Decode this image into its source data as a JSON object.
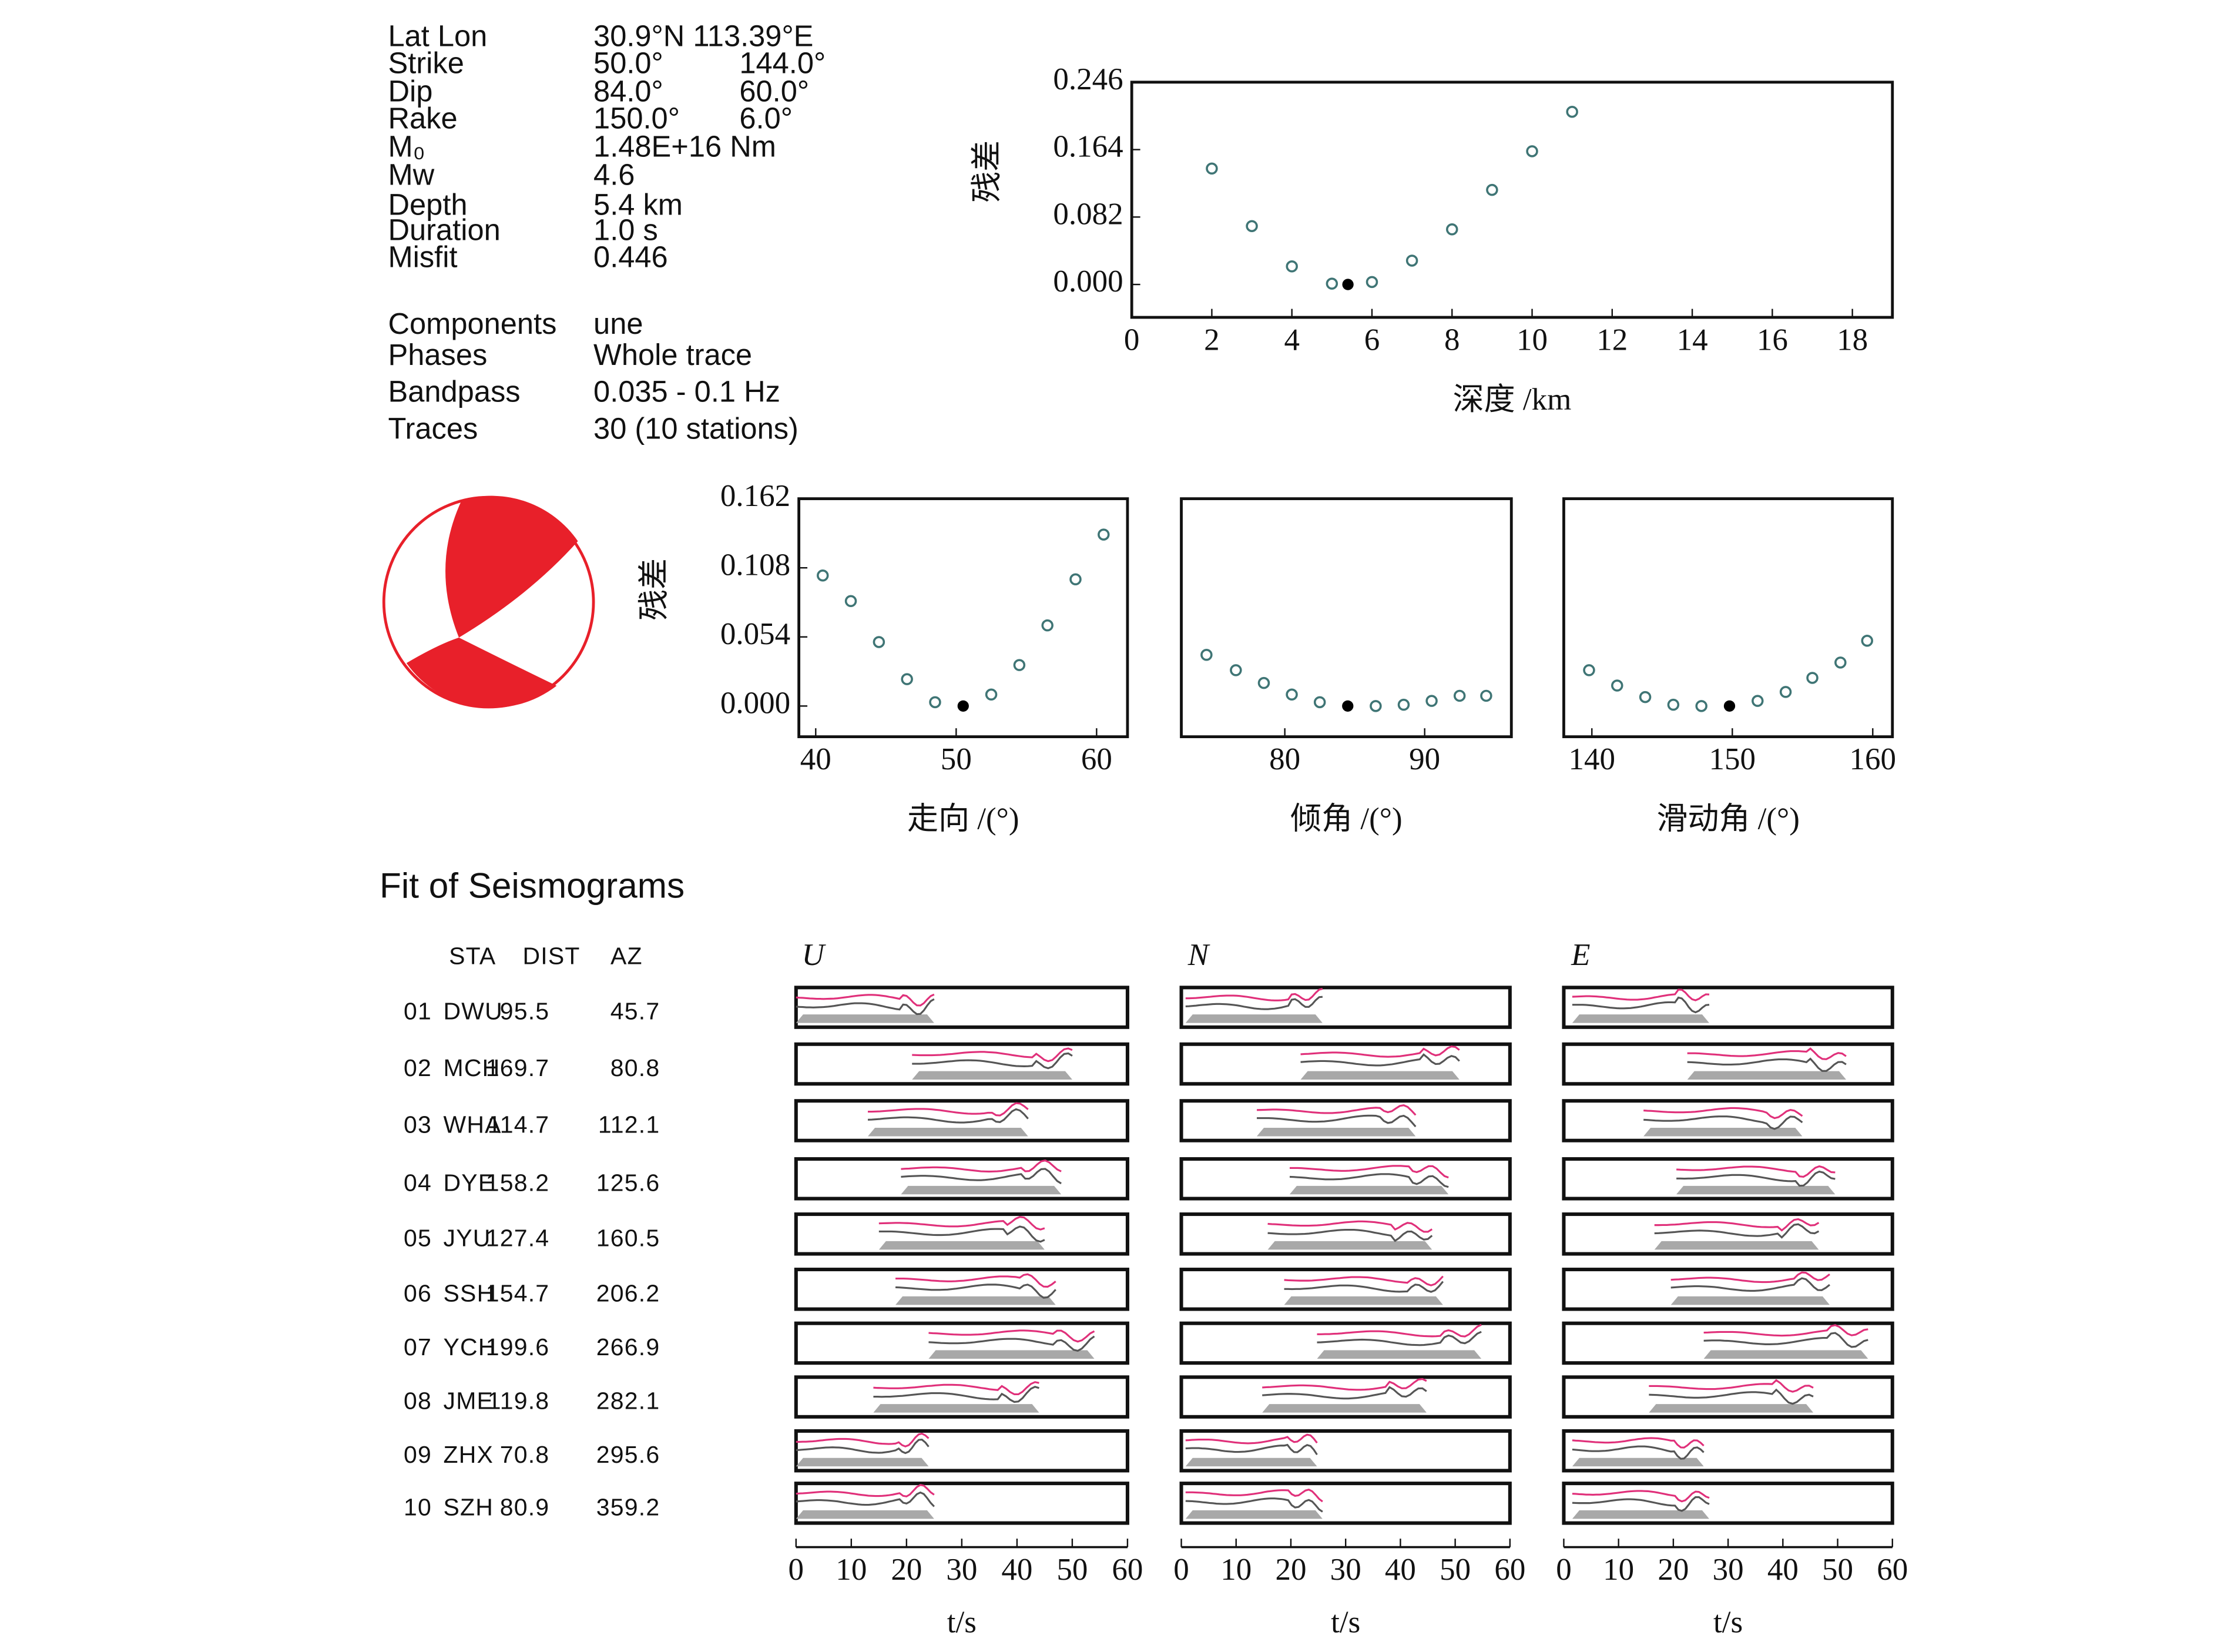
{
  "info": {
    "rows": [
      {
        "label": "Lat Lon",
        "values": [
          "30.9°N 113.39°E"
        ]
      },
      {
        "label": "Strike",
        "values": [
          "50.0°",
          "144.0°"
        ]
      },
      {
        "label": "Dip",
        "values": [
          "84.0°",
          "60.0°"
        ]
      },
      {
        "label": "Rake",
        "values": [
          "150.0°",
          "6.0°"
        ]
      },
      {
        "label": "M₀",
        "values": [
          "1.48E+16 Nm"
        ]
      },
      {
        "label": "Mw",
        "values": [
          "4.6"
        ]
      },
      {
        "label": "Depth",
        "values": [
          "5.4 km"
        ]
      },
      {
        "label": "Duration",
        "values": [
          "1.0 s"
        ]
      },
      {
        "label": "Misfit",
        "values": [
          "0.446"
        ]
      },
      {
        "label": "Components",
        "values": [
          "une"
        ]
      },
      {
        "label": "Phases",
        "values": [
          "Whole trace"
        ]
      },
      {
        "label": "Bandpass",
        "values": [
          "0.035 - 0.1 Hz"
        ]
      },
      {
        "label": "Traces",
        "values": [
          "30 (10 stations)"
        ]
      }
    ]
  },
  "chart_data": [
    {
      "type": "scatter",
      "xlabel": "深度 /km",
      "ylabel": "残差",
      "xlim": [
        0,
        19
      ],
      "ylim": [
        -0.04,
        0.246
      ],
      "xticks": [
        0,
        2,
        4,
        6,
        8,
        10,
        12,
        14,
        16,
        18
      ],
      "yticks": [
        {
          "value": 0,
          "label": "0.000"
        },
        0.082,
        0.164,
        0.246
      ],
      "x": [
        2,
        3,
        4,
        5,
        6,
        7,
        8,
        9,
        10,
        11
      ],
      "values": [
        0.141,
        0.071,
        0.022,
        0.001,
        0.003,
        0.029,
        0.067,
        0.115,
        0.162,
        0.21
      ],
      "color": "#3f7575",
      "best": {
        "x": 5.4,
        "y": 0,
        "color": "#000000"
      }
    },
    {
      "type": "scatter",
      "xlabel": "走向 /(°)",
      "ylabel": "残差",
      "xlim": [
        38.8,
        62.2
      ],
      "ylim": [
        -0.024,
        0.162
      ],
      "xticks": [
        40,
        50,
        60
      ],
      "yticks": [
        {
          "value": 0,
          "label": "0.000"
        },
        0.054,
        0.108,
        0.162
      ],
      "x": [
        40.5,
        42.5,
        44.5,
        46.5,
        48.5,
        52.5,
        54.5,
        56.5,
        58.5,
        60.5
      ],
      "values": [
        0.102,
        0.082,
        0.05,
        0.021,
        0.003,
        0.009,
        0.032,
        0.063,
        0.099,
        0.134
      ],
      "color": "#3f7575",
      "best": {
        "x": 50.5,
        "y": 0,
        "color": "#000000"
      }
    },
    {
      "type": "scatter",
      "xlabel": "倾角 /(°)",
      "xlim": [
        72.6,
        96.2
      ],
      "ylim": [
        -0.024,
        0.162
      ],
      "xticks": [
        80,
        90
      ],
      "x": [
        74.4,
        76.5,
        78.5,
        80.5,
        82.5,
        86.5,
        88.5,
        90.5,
        92.5,
        94.4
      ],
      "values": [
        0.04,
        0.028,
        0.018,
        0.009,
        0.003,
        0,
        0.001,
        0.004,
        0.008,
        0.008
      ],
      "color": "#3f7575",
      "best": {
        "x": 84.5,
        "y": 0,
        "color": "#000000"
      }
    },
    {
      "type": "scatter",
      "xlabel": "滑动角 /(°)",
      "xlim": [
        138,
        161.4
      ],
      "ylim": [
        -0.024,
        0.162
      ],
      "xticks": [
        140,
        150,
        160
      ],
      "x": [
        139.8,
        141.8,
        143.8,
        145.8,
        147.8,
        151.8,
        153.8,
        155.7,
        157.7,
        159.6
      ],
      "values": [
        0.028,
        0.016,
        0.007,
        0.001,
        0,
        0.004,
        0.011,
        0.022,
        0.034,
        0.051
      ],
      "color": "#3f7575",
      "best": {
        "x": 149.8,
        "y": 0,
        "color": "#000000"
      }
    }
  ],
  "seismograms": {
    "title": "Fit of Seismograms",
    "header": [
      "STA",
      "DIST",
      "AZ"
    ],
    "stations": [
      [
        "01",
        "DWU",
        "95.5",
        "45.7"
      ],
      [
        "02",
        "MCH",
        "169.7",
        "80.8"
      ],
      [
        "03",
        "WHA",
        "114.7",
        "112.1"
      ],
      [
        "04",
        "DYE",
        "158.2",
        "125.6"
      ],
      [
        "05",
        "JYU",
        "127.4",
        "160.5"
      ],
      [
        "06",
        "SSH",
        "154.7",
        "206.2"
      ],
      [
        "07",
        "YCH",
        "199.6",
        "266.9"
      ],
      [
        "08",
        "JME",
        "119.8",
        "282.1"
      ],
      [
        "09",
        "ZHX",
        "70.8",
        "295.6"
      ],
      [
        "10",
        "SZH",
        "80.9",
        "359.2"
      ]
    ],
    "components": [
      "U",
      "N",
      "E"
    ],
    "xlim": [
      0,
      60
    ],
    "xticks": [
      0,
      10,
      20,
      30,
      40,
      50,
      60
    ],
    "xlabel": "t/s"
  }
}
